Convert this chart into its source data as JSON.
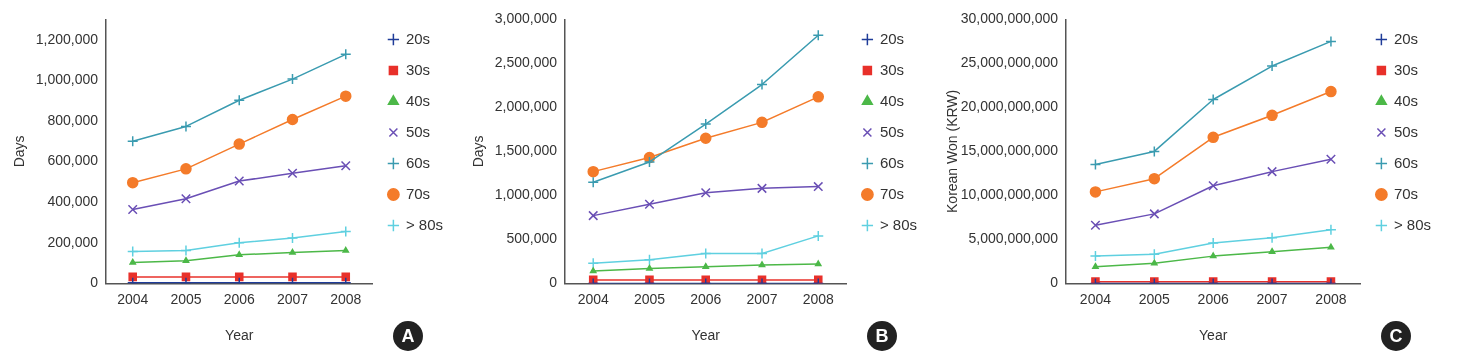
{
  "chart_data": [
    {
      "type": "line",
      "categories": [
        "2004",
        "2005",
        "2006",
        "2007",
        "2008"
      ],
      "xlabel": "Year",
      "ylabel": "Days",
      "ylim": [
        0,
        1300000
      ],
      "yticks": [
        {
          "value": 0,
          "label": "0"
        },
        {
          "value": 200000,
          "label": "200,000"
        },
        {
          "value": 400000,
          "label": "400,000"
        },
        {
          "value": 600000,
          "label": "600,000"
        },
        {
          "value": 800000,
          "label": "800,000"
        },
        {
          "value": 1000000,
          "label": "1,000,000"
        },
        {
          "value": 1200000,
          "label": "1,200,000"
        }
      ],
      "grid": false,
      "legend": "right",
      "annotations": [
        "A"
      ],
      "series": [
        {
          "name": "20s",
          "color": "#1f3c99",
          "marker": "cross",
          "values": [
            3000,
            3000,
            3000,
            3000,
            3000
          ]
        },
        {
          "name": "30s",
          "color": "#e8302a",
          "marker": "square",
          "values": [
            32000,
            32000,
            32000,
            32000,
            32000
          ]
        },
        {
          "name": "40s",
          "color": "#4cb848",
          "marker": "triangle",
          "values": [
            103000,
            112000,
            141000,
            152000,
            162000
          ]
        },
        {
          "name": "50s",
          "color": "#6a4fb5",
          "marker": "x",
          "values": [
            364000,
            417000,
            504000,
            542000,
            579000
          ]
        },
        {
          "name": "60s",
          "color": "#3a9bb0",
          "marker": "cross",
          "values": [
            700000,
            773000,
            902000,
            1006000,
            1128000
          ]
        },
        {
          "name": "70s",
          "color": "#f47b2a",
          "marker": "circle",
          "values": [
            496000,
            564000,
            686000,
            807000,
            922000
          ]
        },
        {
          "name": "> 80s",
          "color": "#5fd0e0",
          "marker": "cross",
          "values": [
            157000,
            162000,
            200000,
            223000,
            255000
          ]
        }
      ]
    },
    {
      "type": "line",
      "categories": [
        "2004",
        "2005",
        "2006",
        "2007",
        "2008"
      ],
      "xlabel": "Year",
      "ylabel": "Days",
      "ylim": [
        0,
        3000000
      ],
      "yticks": [
        {
          "value": 0,
          "label": "0"
        },
        {
          "value": 500000,
          "label": "500,000"
        },
        {
          "value": 1000000,
          "label": "1,000,000"
        },
        {
          "value": 1500000,
          "label": "1,500,000"
        },
        {
          "value": 2000000,
          "label": "2,000,000"
        },
        {
          "value": 2500000,
          "label": "2,500,000"
        },
        {
          "value": 3000000,
          "label": "3,000,000"
        }
      ],
      "grid": false,
      "legend": "right",
      "annotations": [
        "B"
      ],
      "series": [
        {
          "name": "20s",
          "color": "#1f3c99",
          "marker": "cross",
          "values": [
            0,
            0,
            0,
            0,
            0
          ]
        },
        {
          "name": "30s",
          "color": "#e8302a",
          "marker": "square",
          "values": [
            40000,
            40000,
            40000,
            40000,
            40000
          ]
        },
        {
          "name": "40s",
          "color": "#4cb848",
          "marker": "triangle",
          "values": [
            140000,
            170000,
            190000,
            210000,
            220000
          ]
        },
        {
          "name": "50s",
          "color": "#6a4fb5",
          "marker": "x",
          "values": [
            770000,
            900000,
            1030000,
            1080000,
            1100000
          ]
        },
        {
          "name": "60s",
          "color": "#3a9bb0",
          "marker": "cross",
          "values": [
            1150000,
            1380000,
            1810000,
            2260000,
            2820000
          ]
        },
        {
          "name": "70s",
          "color": "#f47b2a",
          "marker": "circle",
          "values": [
            1270000,
            1430000,
            1650000,
            1830000,
            2120000
          ]
        },
        {
          "name": "> 80s",
          "color": "#5fd0e0",
          "marker": "cross",
          "values": [
            230000,
            270000,
            340000,
            340000,
            540000
          ]
        }
      ]
    },
    {
      "type": "line",
      "categories": [
        "2004",
        "2005",
        "2006",
        "2007",
        "2008"
      ],
      "xlabel": "Year",
      "ylabel": "Korean Won (KRW)",
      "ylim": [
        0,
        30000000000
      ],
      "yticks": [
        {
          "value": 0,
          "label": "0"
        },
        {
          "value": 5000000000,
          "label": "5,000,000,000"
        },
        {
          "value": 10000000000,
          "label": "10,000,000,000"
        },
        {
          "value": 15000000000,
          "label": "15,000,000,000"
        },
        {
          "value": 20000000000,
          "label": "20,000,000,000"
        },
        {
          "value": 25000000000,
          "label": "25,000,000,000"
        },
        {
          "value": 30000000000,
          "label": "30,000,000,000"
        }
      ],
      "grid": false,
      "legend": "right",
      "annotations": [
        "C"
      ],
      "series": [
        {
          "name": "20s",
          "color": "#1f3c99",
          "marker": "cross",
          "values": [
            0,
            0,
            0,
            0,
            0
          ]
        },
        {
          "name": "30s",
          "color": "#e8302a",
          "marker": "square",
          "values": [
            200000000,
            200000000,
            200000000,
            200000000,
            200000000
          ]
        },
        {
          "name": "40s",
          "color": "#4cb848",
          "marker": "triangle",
          "values": [
            1900000000,
            2300000000,
            3100000000,
            3600000000,
            4100000000
          ]
        },
        {
          "name": "50s",
          "color": "#6a4fb5",
          "marker": "x",
          "values": [
            6600000000,
            7900000000,
            11100000000,
            12700000000,
            14100000000
          ]
        },
        {
          "name": "60s",
          "color": "#3a9bb0",
          "marker": "cross",
          "values": [
            13500000000,
            15000000000,
            20900000000,
            24700000000,
            27500000000
          ]
        },
        {
          "name": "70s",
          "color": "#f47b2a",
          "marker": "circle",
          "values": [
            10400000000,
            11900000000,
            16600000000,
            19100000000,
            21800000000
          ]
        },
        {
          "name": "> 80s",
          "color": "#5fd0e0",
          "marker": "cross",
          "values": [
            3100000000,
            3300000000,
            4600000000,
            5200000000,
            6100000000
          ]
        }
      ]
    }
  ]
}
